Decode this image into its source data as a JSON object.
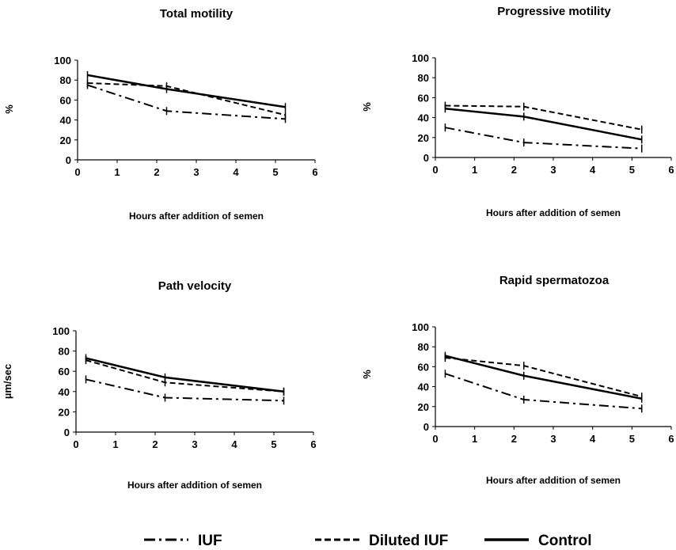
{
  "chart_data": [
    {
      "type": "line",
      "title": "Total motility",
      "xlabel": "Hours after addition of semen",
      "ylabel": "%",
      "xlim": [
        0,
        6
      ],
      "ylim": [
        0,
        100
      ],
      "xticks": [
        0,
        1,
        2,
        3,
        4,
        5,
        6
      ],
      "yticks": [
        0,
        20,
        40,
        60,
        80,
        100
      ],
      "x": [
        0.25,
        2.25,
        5.25
      ],
      "series": [
        {
          "name": "IUF",
          "values": [
            75,
            49,
            41
          ]
        },
        {
          "name": "Diluted IUF",
          "values": [
            77,
            74,
            45
          ]
        },
        {
          "name": "Control",
          "values": [
            85,
            71,
            53
          ]
        }
      ]
    },
    {
      "type": "line",
      "title": "Progressive motility",
      "xlabel": "Hours after addition of semen",
      "ylabel": "%",
      "xlim": [
        0,
        6
      ],
      "ylim": [
        0,
        100
      ],
      "xticks": [
        0,
        1,
        2,
        3,
        4,
        5,
        6
      ],
      "yticks": [
        0,
        20,
        40,
        60,
        80,
        100
      ],
      "x": [
        0.25,
        2.25,
        5.25
      ],
      "series": [
        {
          "name": "IUF",
          "values": [
            30,
            15,
            9
          ]
        },
        {
          "name": "Diluted IUF",
          "values": [
            52,
            51,
            28
          ]
        },
        {
          "name": "Control",
          "values": [
            49,
            41,
            18
          ]
        }
      ]
    },
    {
      "type": "line",
      "title": "Path velocity",
      "xlabel": "Hours after addition of semen",
      "ylabel": "µm/sec",
      "xlim": [
        0,
        6
      ],
      "ylim": [
        0,
        100
      ],
      "xticks": [
        0,
        1,
        2,
        3,
        4,
        5,
        6
      ],
      "yticks": [
        0,
        20,
        40,
        60,
        80,
        100
      ],
      "x": [
        0.25,
        2.25,
        5.25
      ],
      "series": [
        {
          "name": "IUF",
          "values": [
            52,
            34,
            31
          ]
        },
        {
          "name": "Diluted IUF",
          "values": [
            71,
            49,
            40
          ]
        },
        {
          "name": "Control",
          "values": [
            73,
            54,
            40
          ]
        }
      ]
    },
    {
      "type": "line",
      "title": "Rapid spermatozoa",
      "xlabel": "Hours after addition of semen",
      "ylabel": "%",
      "xlim": [
        0,
        6
      ],
      "ylim": [
        0,
        100
      ],
      "xticks": [
        0,
        1,
        2,
        3,
        4,
        5,
        6
      ],
      "yticks": [
        0,
        20,
        40,
        60,
        80,
        100
      ],
      "x": [
        0.25,
        2.25,
        5.25
      ],
      "series": [
        {
          "name": "IUF",
          "values": [
            53,
            27,
            18
          ]
        },
        {
          "name": "Diluted IUF",
          "values": [
            69,
            61,
            30
          ]
        },
        {
          "name": "Control",
          "values": [
            71,
            51,
            28
          ]
        }
      ]
    }
  ],
  "legend": {
    "items": [
      {
        "label": "IUF",
        "style": "dash-dot"
      },
      {
        "label": "Diluted IUF",
        "style": "dashed"
      },
      {
        "label": "Control",
        "style": "solid"
      }
    ],
    "position": "bottom"
  },
  "colors": {
    "ink": "#000000",
    "background": "#ffffff"
  }
}
